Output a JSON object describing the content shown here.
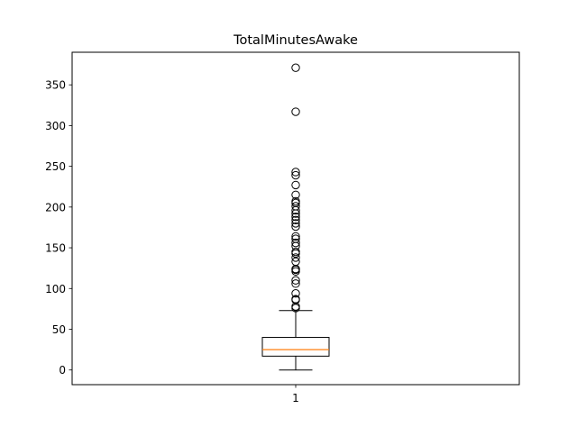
{
  "chart_data": {
    "type": "box",
    "title": "TotalMinutesAwake",
    "xlabel": "",
    "ylabel": "",
    "categories": [
      "1"
    ],
    "ylim": [
      -18,
      390
    ],
    "yticks": [
      0,
      50,
      100,
      150,
      200,
      250,
      300,
      350
    ],
    "grid": false,
    "box": {
      "whisker_low": 0,
      "q1": 17,
      "median": 25,
      "q3": 40,
      "whisker_high": 73,
      "outliers": [
        76,
        78,
        86,
        87,
        94,
        106,
        110,
        121,
        123,
        124,
        133,
        138,
        143,
        145,
        152,
        156,
        161,
        164,
        176,
        180,
        184,
        188,
        192,
        196,
        201,
        205,
        207,
        215,
        227,
        239,
        243,
        317,
        371
      ]
    },
    "colors": {
      "box": "#000000",
      "median": "#ff7f0e",
      "outlier": "#000000"
    }
  }
}
